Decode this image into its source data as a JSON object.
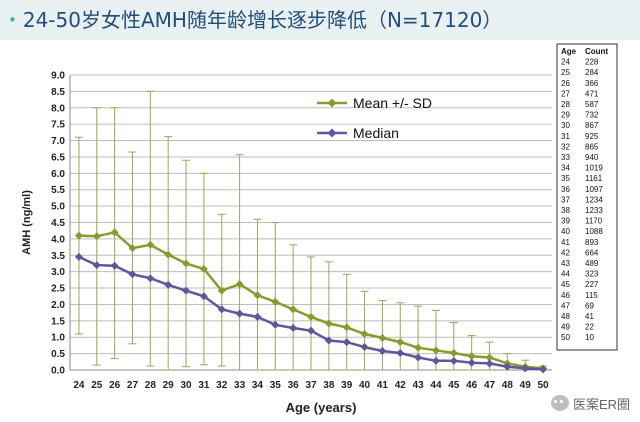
{
  "title": "24-50岁女性AMH随年龄增长逐步降低（N=17120）",
  "watermark": "医案ER圈",
  "chart_data": {
    "type": "line",
    "xlabel": "Age (years)",
    "ylabel": "AMH (ng/ml)",
    "ylim": [
      0,
      9
    ],
    "yticks": [
      "0.0",
      "0.5",
      "1.0",
      "1.5",
      "2.0",
      "2.5",
      "3.0",
      "3.5",
      "4.0",
      "4.5",
      "5.0",
      "5.5",
      "6.0",
      "6.5",
      "7.0",
      "7.5",
      "8.0",
      "8.5",
      "9.0"
    ],
    "x": [
      24,
      25,
      26,
      27,
      28,
      29,
      30,
      31,
      32,
      33,
      34,
      35,
      36,
      37,
      38,
      39,
      40,
      41,
      42,
      43,
      44,
      45,
      46,
      47,
      48,
      49,
      50
    ],
    "series": [
      {
        "name": "Mean +/- SD",
        "color": "#8a9a2e",
        "marker": "diamond",
        "values": [
          4.1,
          4.08,
          4.2,
          3.72,
          3.82,
          3.52,
          3.25,
          3.08,
          2.42,
          2.62,
          2.28,
          2.08,
          1.85,
          1.62,
          1.42,
          1.3,
          1.1,
          0.98,
          0.85,
          0.68,
          0.6,
          0.52,
          0.42,
          0.38,
          0.2,
          0.1,
          0.05
        ],
        "error_high": [
          7.1,
          8.0,
          8.0,
          6.65,
          8.5,
          7.12,
          6.4,
          6.0,
          4.75,
          6.57,
          4.6,
          4.5,
          3.82,
          3.45,
          3.3,
          2.92,
          2.4,
          2.12,
          2.05,
          1.95,
          1.82,
          1.45,
          1.05,
          0.85,
          0.5,
          0.3,
          0.12
        ],
        "error_low": [
          1.1,
          0.15,
          0.35,
          0.8,
          0.12,
          0.0,
          0.1,
          0.16,
          0.12,
          0.0,
          0.0,
          0.0,
          0.0,
          0.0,
          0.0,
          0.0,
          0.0,
          0.0,
          0.0,
          0.0,
          0.0,
          0.0,
          0.0,
          0.0,
          0.0,
          0.0,
          0.0
        ]
      },
      {
        "name": "Median",
        "color": "#5a5a9a",
        "marker": "diamond",
        "values": [
          3.45,
          3.2,
          3.18,
          2.92,
          2.8,
          2.6,
          2.42,
          2.25,
          1.85,
          1.72,
          1.62,
          1.38,
          1.28,
          1.2,
          0.9,
          0.85,
          0.7,
          0.58,
          0.52,
          0.38,
          0.28,
          0.28,
          0.22,
          0.2,
          0.1,
          0.05,
          0.02
        ]
      }
    ],
    "legend_position": "top-left",
    "count_table": {
      "headers": [
        "Age",
        "Count"
      ],
      "rows": [
        [
          "24",
          "228"
        ],
        [
          "25",
          "284"
        ],
        [
          "26",
          "366"
        ],
        [
          "27",
          "471"
        ],
        [
          "28",
          "587"
        ],
        [
          "29",
          "732"
        ],
        [
          "30",
          "867"
        ],
        [
          "31",
          "925"
        ],
        [
          "32",
          "865"
        ],
        [
          "33",
          "940"
        ],
        [
          "34",
          "1019"
        ],
        [
          "35",
          "1161"
        ],
        [
          "36",
          "1097"
        ],
        [
          "37",
          "1234"
        ],
        [
          "38",
          "1233"
        ],
        [
          "39",
          "1170"
        ],
        [
          "40",
          "1088"
        ],
        [
          "41",
          "893"
        ],
        [
          "42",
          "664"
        ],
        [
          "43",
          "489"
        ],
        [
          "44",
          "323"
        ],
        [
          "45",
          "227"
        ],
        [
          "46",
          "115"
        ],
        [
          "47",
          "69"
        ],
        [
          "48",
          "41"
        ],
        [
          "49",
          "22"
        ],
        [
          "50",
          "10"
        ]
      ]
    }
  }
}
